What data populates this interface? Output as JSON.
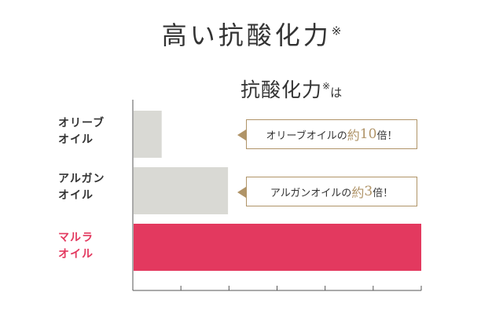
{
  "heading": {
    "text": "高い抗酸化力",
    "mark": "※"
  },
  "subheading": {
    "text": "抗酸化力",
    "mark": "※",
    "suffix": "は"
  },
  "chart_data": {
    "type": "bar",
    "orientation": "horizontal",
    "categories": [
      {
        "line1": "オリーブ",
        "line2": "オイル"
      },
      {
        "line1": "アルガン",
        "line2": "オイル"
      },
      {
        "line1": "マルラ",
        "line2": "オイル"
      }
    ],
    "values": [
      1,
      3.3,
      10
    ],
    "xlim": [
      0,
      10
    ],
    "x_ticks": 6,
    "colors": [
      "#d9d9d4",
      "#d9d9d4",
      "#e3395f"
    ],
    "highlight_label_color": "#e3395f",
    "axis_color": "#555555"
  },
  "callouts": [
    {
      "pre": "オリーブオイルの",
      "em": "約",
      "num": "10",
      "post": "倍！"
    },
    {
      "pre": "アルガンオイルの",
      "em": "約",
      "num": "3",
      "post": "倍！"
    }
  ]
}
